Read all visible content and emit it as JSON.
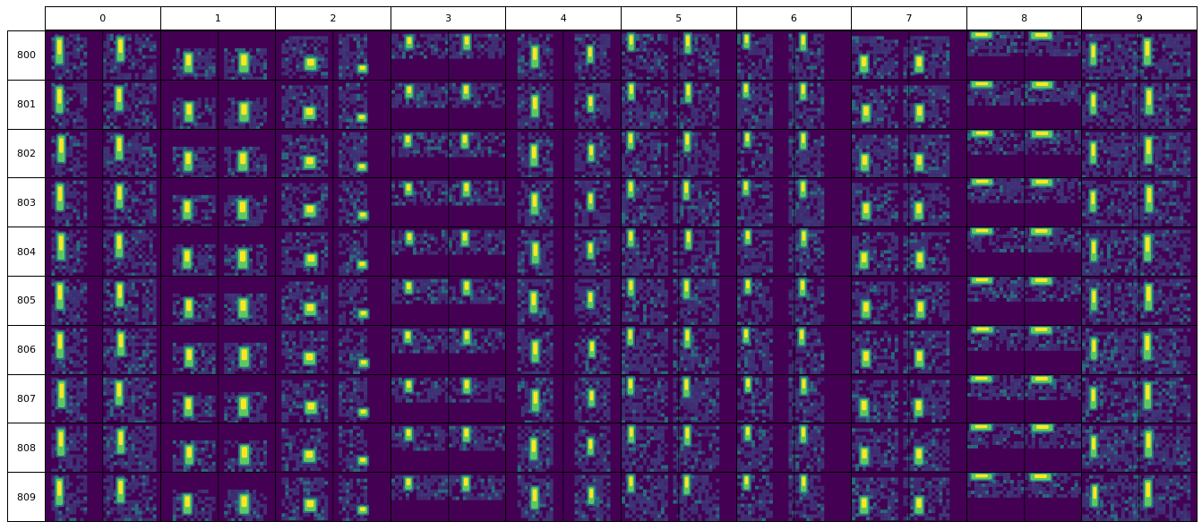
{
  "columns": [
    "0",
    "1",
    "2",
    "3",
    "4",
    "5",
    "6",
    "7",
    "8",
    "9"
  ],
  "rows": [
    "800",
    "801",
    "802",
    "803",
    "804",
    "805",
    "806",
    "807",
    "808",
    "809"
  ],
  "colormap": {
    "background": "#440154",
    "low": "#3b528b",
    "mid": "#21918c",
    "high": "#5ec962",
    "peak": "#fde725"
  },
  "border_color": "#000000"
}
